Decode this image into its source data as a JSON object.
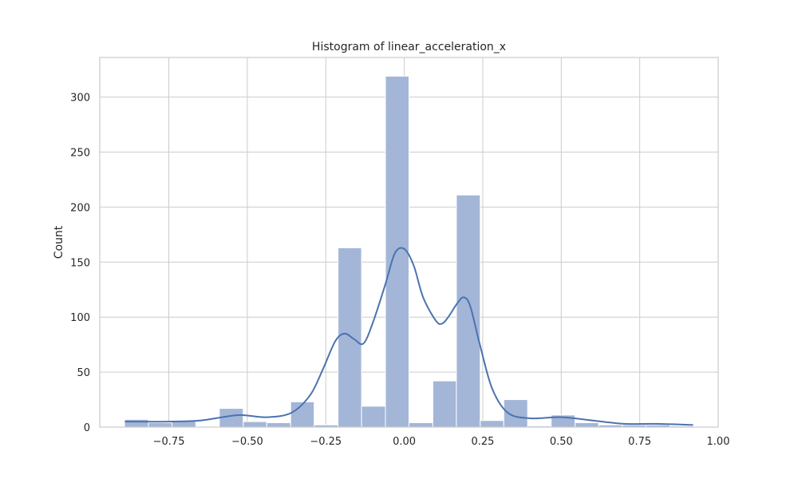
{
  "chart_data": {
    "type": "bar",
    "title": "Histogram of linear_acceleration_x",
    "xlabel": "",
    "ylabel": "Count",
    "xlim": [
      -0.97,
      1.0
    ],
    "ylim": [
      0,
      336
    ],
    "xticks": [
      -0.75,
      -0.5,
      -0.25,
      0.0,
      0.25,
      0.5,
      0.75,
      1.0
    ],
    "xtick_labels": [
      "−0.75",
      "−0.50",
      "−0.25",
      "0.00",
      "0.25",
      "0.50",
      "0.75",
      "1.00"
    ],
    "yticks": [
      0,
      50,
      100,
      150,
      200,
      250,
      300
    ],
    "ytick_labels": [
      "0",
      "50",
      "100",
      "150",
      "200",
      "250",
      "300"
    ],
    "grid": true,
    "bins": [
      {
        "x0": -0.891,
        "x1": -0.815,
        "count": 7
      },
      {
        "x0": -0.815,
        "x1": -0.74,
        "count": 4
      },
      {
        "x0": -0.74,
        "x1": -0.664,
        "count": 6
      },
      {
        "x0": -0.664,
        "x1": -0.589,
        "count": 0
      },
      {
        "x0": -0.589,
        "x1": -0.513,
        "count": 17
      },
      {
        "x0": -0.513,
        "x1": -0.438,
        "count": 5
      },
      {
        "x0": -0.438,
        "x1": -0.362,
        "count": 4
      },
      {
        "x0": -0.362,
        "x1": -0.287,
        "count": 23
      },
      {
        "x0": -0.287,
        "x1": -0.211,
        "count": 2
      },
      {
        "x0": -0.211,
        "x1": -0.136,
        "count": 163
      },
      {
        "x0": -0.136,
        "x1": -0.06,
        "count": 19
      },
      {
        "x0": -0.06,
        "x1": 0.015,
        "count": 319
      },
      {
        "x0": 0.015,
        "x1": 0.091,
        "count": 4
      },
      {
        "x0": 0.091,
        "x1": 0.166,
        "count": 42
      },
      {
        "x0": 0.166,
        "x1": 0.242,
        "count": 211
      },
      {
        "x0": 0.242,
        "x1": 0.317,
        "count": 6
      },
      {
        "x0": 0.317,
        "x1": 0.393,
        "count": 25
      },
      {
        "x0": 0.393,
        "x1": 0.468,
        "count": 1
      },
      {
        "x0": 0.468,
        "x1": 0.544,
        "count": 11
      },
      {
        "x0": 0.544,
        "x1": 0.619,
        "count": 4
      },
      {
        "x0": 0.619,
        "x1": 0.695,
        "count": 2
      },
      {
        "x0": 0.695,
        "x1": 0.77,
        "count": 2
      },
      {
        "x0": 0.77,
        "x1": 0.846,
        "count": 2
      },
      {
        "x0": 0.846,
        "x1": 0.921,
        "count": 1
      }
    ],
    "kde": {
      "x": [
        -0.89,
        -0.75,
        -0.65,
        -0.58,
        -0.52,
        -0.44,
        -0.36,
        -0.3,
        -0.26,
        -0.22,
        -0.19,
        -0.16,
        -0.13,
        -0.1,
        -0.06,
        -0.03,
        0.0,
        0.03,
        0.06,
        0.1,
        0.12,
        0.14,
        0.17,
        0.19,
        0.21,
        0.24,
        0.28,
        0.33,
        0.4,
        0.5,
        0.6,
        0.7,
        0.8,
        0.92
      ],
      "y": [
        5,
        5,
        6,
        9,
        11,
        9,
        13,
        29,
        52,
        78,
        85,
        80,
        76,
        95,
        130,
        158,
        162,
        147,
        118,
        97,
        94,
        100,
        113,
        118,
        110,
        76,
        35,
        13,
        8,
        9,
        6,
        3,
        3,
        2
      ]
    },
    "colors": {
      "bar_fill": "#a3b6d8",
      "bar_edge": "#ffffff",
      "kde_line": "#4c72b0",
      "grid": "#cccccc",
      "background": "#ffffff"
    }
  }
}
